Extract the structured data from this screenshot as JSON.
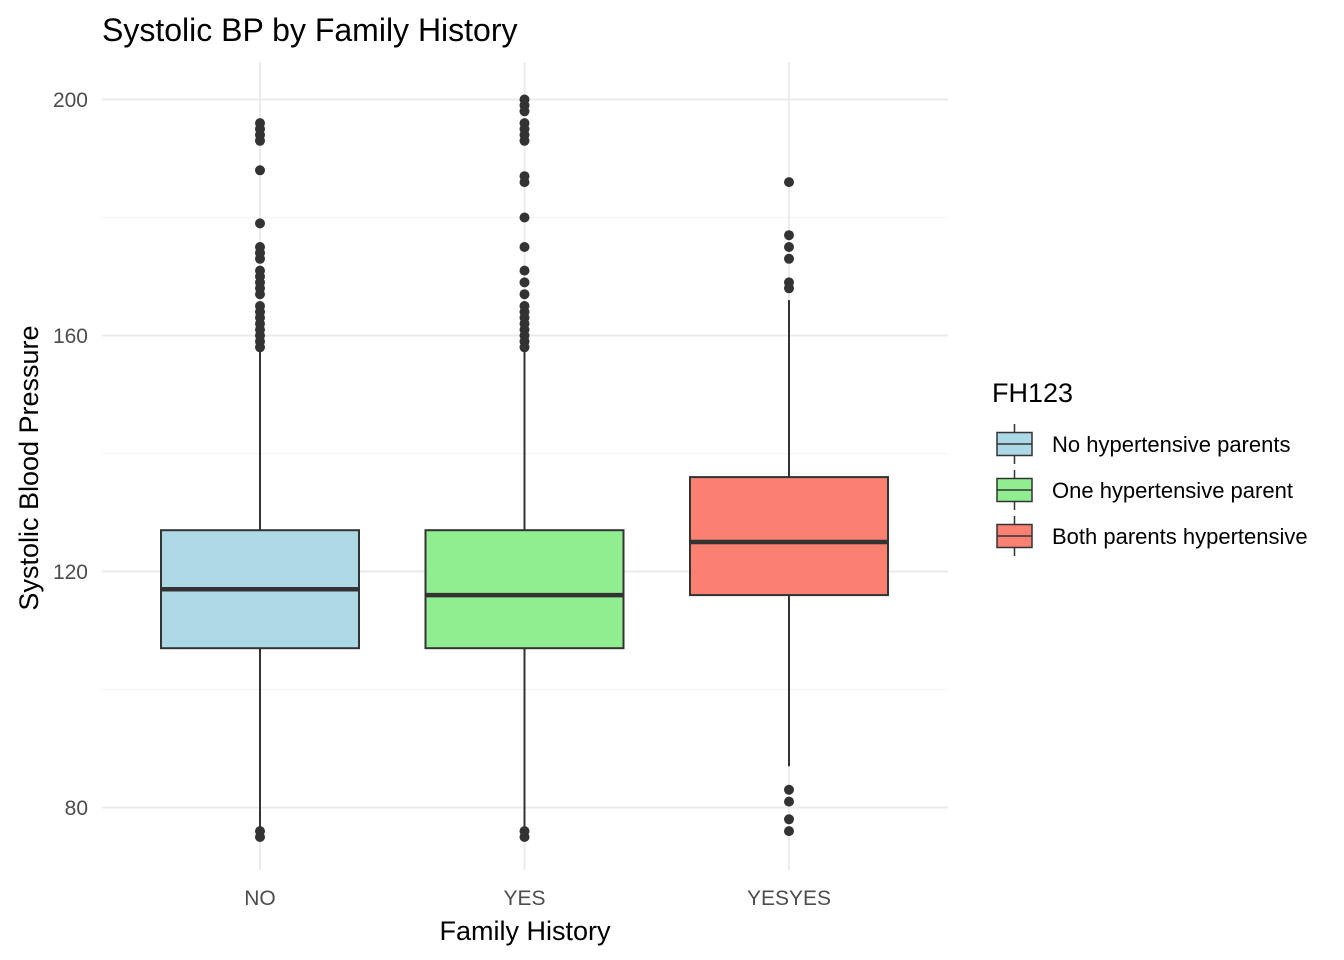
{
  "chart_data": {
    "type": "box",
    "title": "Systolic BP by Family History",
    "xlabel": "Family History",
    "ylabel": "Systolic Blood Pressure",
    "ylim": [
      68,
      206
    ],
    "yticks": [
      80,
      120,
      160,
      200
    ],
    "grid": true,
    "legend_position": "right",
    "legend_title": "FH123",
    "colors": {
      "grid_major": "#ebebeb",
      "grid_minor": "#f5f5f5",
      "outline": "#333333",
      "point": "#333333"
    },
    "categories": [
      "NO",
      "YES",
      "YESYES"
    ],
    "series": [
      {
        "category": "NO",
        "name": "No hypertensive parents",
        "color": "#add8e6",
        "q1": 107,
        "median": 117,
        "q3": 127,
        "whisker_low": 76,
        "whisker_high": 158,
        "outliers": [
          196,
          195,
          194,
          193,
          188,
          179,
          175,
          174,
          173,
          171,
          170,
          169,
          168,
          167,
          165,
          164,
          163,
          162,
          161,
          160,
          159,
          158,
          76,
          75
        ]
      },
      {
        "category": "YES",
        "name": "One hypertensive parent",
        "color": "#90ee90",
        "q1": 107,
        "median": 116,
        "q3": 127,
        "whisker_low": 76,
        "whisker_high": 158,
        "outliers": [
          200,
          199,
          198,
          196,
          195,
          194,
          193,
          187,
          186,
          180,
          175,
          171,
          169,
          167,
          165,
          164,
          163,
          162,
          161,
          160,
          159,
          158,
          76,
          75
        ]
      },
      {
        "category": "YESYES",
        "name": "Both parents hypertensive",
        "color": "#fa8072",
        "q1": 116,
        "median": 125,
        "q3": 136,
        "whisker_low": 87,
        "whisker_high": 166,
        "outliers": [
          186,
          177,
          175,
          173,
          169,
          168,
          83,
          81,
          78,
          76
        ]
      }
    ]
  }
}
